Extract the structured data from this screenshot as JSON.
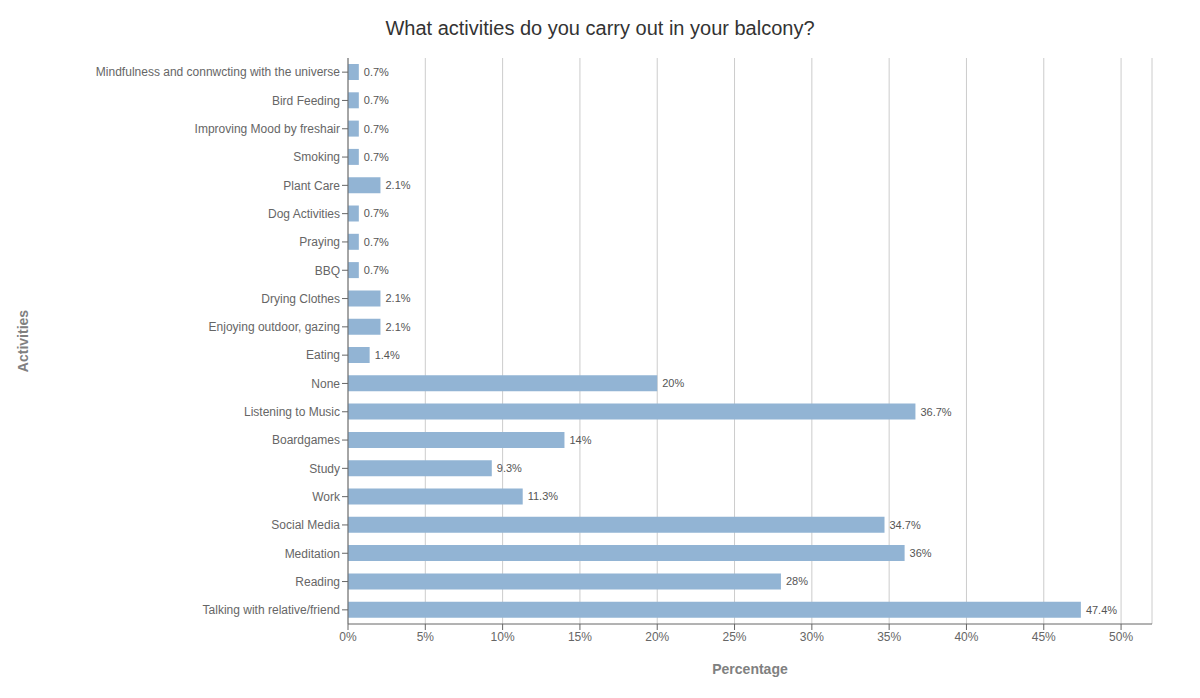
{
  "chart_data": {
    "type": "bar",
    "orientation": "horizontal",
    "title": "What activities do you carry out in your balcony?",
    "xlabel": "Percentage",
    "ylabel": "Activities",
    "categories": [
      "Mindfulness and connwcting with the universe",
      "Bird Feeding",
      "Improving Mood by freshair",
      "Smoking",
      "Plant Care",
      "Dog Activities",
      "Praying",
      "BBQ",
      "Drying Clothes",
      "Enjoying outdoor, gazing",
      "Eating",
      "None",
      "Listening to Music",
      "Boardgames",
      "Study",
      "Work",
      "Social Media",
      "Meditation",
      "Reading",
      "Talking with relative/friend"
    ],
    "values": [
      0.7,
      0.7,
      0.7,
      0.7,
      2.1,
      0.7,
      0.7,
      0.7,
      2.1,
      2.1,
      1.4,
      20.0,
      36.7,
      14.0,
      9.3,
      11.3,
      34.7,
      36.0,
      28.0,
      47.4
    ],
    "value_labels": [
      "0.7%",
      "0.7%",
      "0.7%",
      "0.7%",
      "2.1%",
      "0.7%",
      "0.7%",
      "0.7%",
      "2.1%",
      "2.1%",
      "1.4%",
      "20%",
      "36.7%",
      "14%",
      "9.3%",
      "11.3%",
      "34.7%",
      "36%",
      "28%",
      "47.4%"
    ],
    "data_labels": true,
    "color": "#92b4d4",
    "xlim": [
      0,
      52
    ],
    "xticks": [
      {
        "value": 0,
        "label": "0%"
      },
      {
        "value": 5,
        "label": "5%"
      },
      {
        "value": 10,
        "label": "10%"
      },
      {
        "value": 15,
        "label": "15%"
      },
      {
        "value": 20,
        "label": "20%"
      },
      {
        "value": 25,
        "label": "25%"
      },
      {
        "value": 30,
        "label": "30%"
      },
      {
        "value": 35,
        "label": "35%"
      },
      {
        "value": 40,
        "label": "40%"
      },
      {
        "value": 45,
        "label": "45%"
      },
      {
        "value": 50,
        "label": "50%"
      }
    ],
    "grid": true
  }
}
